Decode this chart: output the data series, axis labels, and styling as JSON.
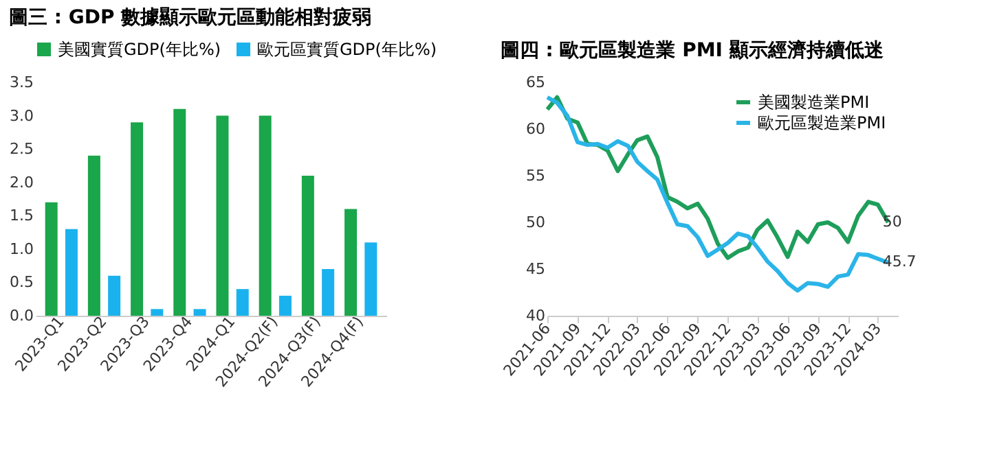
{
  "chart_data": [
    {
      "type": "bar",
      "title": "圖三 : GDP 數據顯示歐元區動能相對疲弱",
      "categories": [
        "2023-Q1",
        "2023-Q2",
        "2023-Q3",
        "2023-Q4",
        "2024-Q1",
        "2024-Q2(F)",
        "2024-Q3(F)",
        "2024-Q4(F)"
      ],
      "series": [
        {
          "name": "美國實質GDP(年比%)",
          "color": "#1aa64a",
          "values": [
            1.7,
            2.4,
            2.9,
            3.1,
            3.0,
            3.0,
            2.1,
            1.6
          ]
        },
        {
          "name": "歐元區實質GDP(年比%)",
          "color": "#1ab2ee",
          "values": [
            1.3,
            0.6,
            0.1,
            0.1,
            0.4,
            0.3,
            0.7,
            1.1
          ]
        }
      ],
      "ylim": [
        0,
        3.5
      ],
      "yticks": [
        {
          "value": 0,
          "label": "0.0"
        },
        0.5,
        {
          "value": 1,
          "label": "1.0"
        },
        1.5,
        {
          "value": 2,
          "label": "2.0"
        },
        2.5,
        {
          "value": 3,
          "label": "3.0"
        },
        3.5
      ],
      "grid": false,
      "legend": "top"
    },
    {
      "type": "line",
      "title": "圖四 : 歐元區製造業 PMI 顯示經濟持續低迷",
      "x": [
        "2021-06",
        "2021-07",
        "2021-08",
        "2021-09",
        "2021-10",
        "2021-11",
        "2021-12",
        "2022-01",
        "2022-02",
        "2022-03",
        "2022-04",
        "2022-05",
        "2022-06",
        "2022-07",
        "2022-08",
        "2022-09",
        "2022-10",
        "2022-11",
        "2022-12",
        "2023-01",
        "2023-02",
        "2023-03",
        "2023-04",
        "2023-05",
        "2023-06",
        "2023-07",
        "2023-08",
        "2023-09",
        "2023-10",
        "2023-11",
        "2023-12",
        "2024-01",
        "2024-02",
        "2024-03",
        "2024-04"
      ],
      "series": [
        {
          "name": "美國製造業PMI",
          "color": "#1e9e5a",
          "values": [
            62.1,
            63.4,
            61.1,
            60.7,
            58.4,
            58.3,
            57.7,
            55.5,
            57.3,
            58.8,
            59.2,
            57.0,
            52.7,
            52.2,
            51.5,
            52.0,
            50.4,
            47.7,
            46.2,
            46.9,
            47.3,
            49.2,
            50.2,
            48.4,
            46.3,
            49.0,
            47.9,
            49.8,
            50.0,
            49.4,
            47.9,
            50.7,
            52.2,
            51.9,
            50
          ],
          "value_labels": [
            null,
            null,
            null,
            null,
            null,
            null,
            null,
            null,
            null,
            null,
            null,
            null,
            null,
            null,
            null,
            null,
            null,
            null,
            null,
            null,
            null,
            null,
            null,
            null,
            null,
            null,
            null,
            null,
            null,
            null,
            null,
            null,
            null,
            null,
            "50"
          ]
        },
        {
          "name": "歐元區製造業PMI",
          "color": "#2ab4e8",
          "values": [
            63.4,
            62.8,
            61.4,
            58.6,
            58.3,
            58.4,
            58.0,
            58.7,
            58.2,
            56.5,
            55.5,
            54.6,
            52.1,
            49.8,
            49.6,
            48.4,
            46.4,
            47.1,
            47.8,
            48.8,
            48.5,
            47.3,
            45.8,
            44.8,
            43.5,
            42.7,
            43.5,
            43.4,
            43.1,
            44.2,
            44.4,
            46.6,
            46.5,
            46.1,
            45.7
          ],
          "value_labels": [
            null,
            null,
            null,
            null,
            null,
            null,
            null,
            null,
            null,
            null,
            null,
            null,
            null,
            null,
            null,
            null,
            null,
            null,
            null,
            null,
            null,
            null,
            null,
            null,
            null,
            null,
            null,
            null,
            null,
            null,
            null,
            null,
            null,
            null,
            "45.7"
          ]
        }
      ],
      "xlim": [
        "2021-06",
        "2024-05"
      ],
      "xticks": [
        "2021-06",
        "2021-09",
        "2021-12",
        "2022-03",
        "2022-06",
        "2022-09",
        "2022-12",
        "2023-03",
        "2023-06",
        "2023-09",
        "2023-12",
        "2024-03"
      ],
      "ylim": [
        40,
        65
      ],
      "yticks": [
        40,
        45,
        50,
        55,
        60,
        65
      ],
      "grid": false,
      "legend": "top right",
      "marker": "none",
      "line_style": "solid"
    }
  ]
}
